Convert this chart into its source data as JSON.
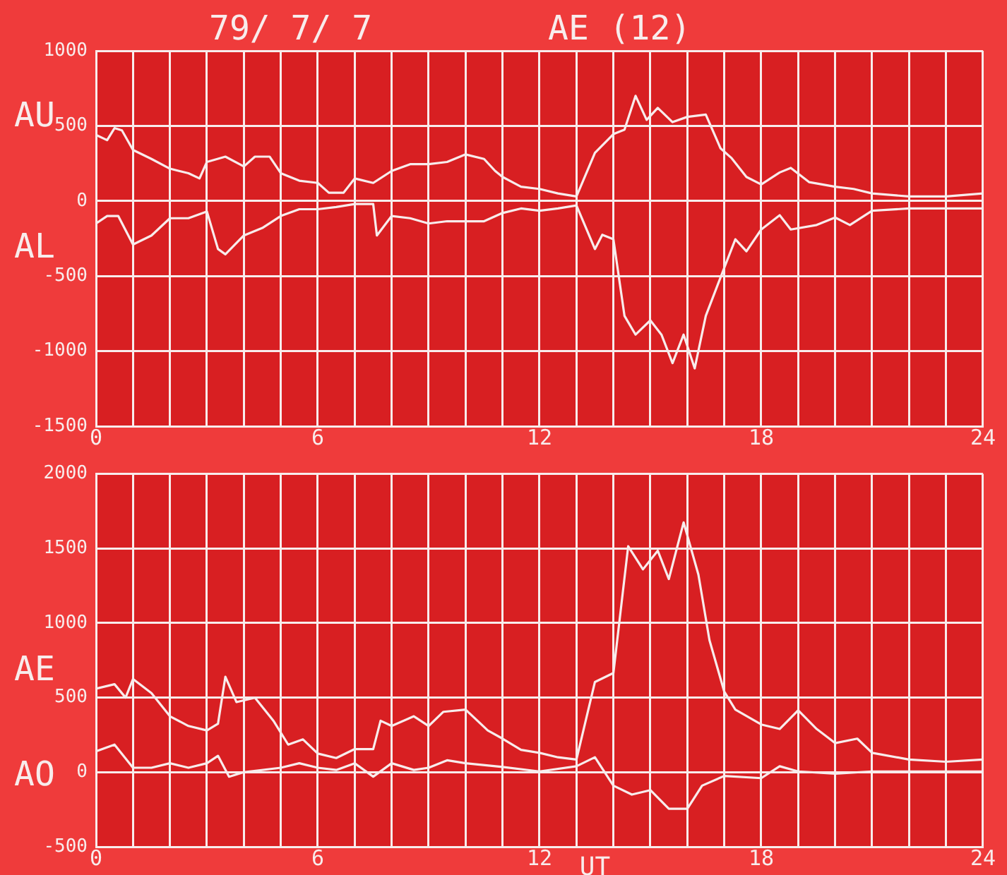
{
  "chart_data": [
    {
      "type": "line",
      "title": "79/ 7/ 7",
      "subtitle": "AE (12)",
      "xlim": [
        0,
        24
      ],
      "ylim": [
        -1500,
        1000
      ],
      "xticks": [
        0,
        {
          "value": 1,
          "label": null
        },
        {
          "value": 2,
          "label": null
        },
        {
          "value": 3,
          "label": null
        },
        {
          "value": 4,
          "label": null
        },
        {
          "value": 5,
          "label": null
        },
        6,
        {
          "value": 7,
          "label": null
        },
        {
          "value": 8,
          "label": null
        },
        {
          "value": 9,
          "label": null
        },
        {
          "value": 10,
          "label": null
        },
        {
          "value": 11,
          "label": null
        },
        12,
        {
          "value": 13,
          "label": null
        },
        {
          "value": 14,
          "label": null
        },
        {
          "value": 15,
          "label": null
        },
        {
          "value": 16,
          "label": null
        },
        {
          "value": 17,
          "label": null
        },
        18,
        {
          "value": 19,
          "label": null
        },
        {
          "value": 20,
          "label": null
        },
        {
          "value": 21,
          "label": null
        },
        {
          "value": 22,
          "label": null
        },
        {
          "value": 23,
          "label": null
        },
        24
      ],
      "yticks": [
        -1500,
        -1000,
        -500,
        0,
        500,
        1000
      ],
      "grid": true,
      "legend": false,
      "marker": "none",
      "line_style": "solid",
      "series": [
        {
          "name": "AU",
          "color": "#f8ecec",
          "x": [
            0,
            0.3,
            0.5,
            0.7,
            1,
            1.5,
            2,
            2.5,
            2.8,
            3,
            3.5,
            4,
            4.3,
            4.7,
            5,
            5.5,
            6,
            6.3,
            6.7,
            7,
            7.5,
            8,
            8.5,
            9,
            9.5,
            10,
            10.5,
            10.8,
            11,
            11.5,
            12,
            12.5,
            13,
            13.5,
            14,
            14.3,
            14.6,
            14.9,
            15.2,
            15.6,
            16,
            16.5,
            16.9,
            17.2,
            17.6,
            18,
            18.5,
            18.8,
            19.3,
            20,
            20.5,
            21,
            22,
            23,
            24
          ],
          "values": [
            440,
            405,
            485,
            470,
            340,
            280,
            215,
            185,
            150,
            260,
            295,
            230,
            295,
            295,
            185,
            135,
            120,
            55,
            55,
            150,
            120,
            200,
            245,
            245,
            260,
            310,
            280,
            200,
            160,
            95,
            80,
            50,
            30,
            320,
            445,
            475,
            700,
            540,
            620,
            525,
            560,
            575,
            350,
            285,
            160,
            110,
            190,
            220,
            125,
            95,
            80,
            50,
            30,
            30,
            50
          ]
        },
        {
          "name": "AL",
          "color": "#f8ecec",
          "x": [
            0,
            0.3,
            0.6,
            0.8,
            1,
            1.5,
            2,
            2.5,
            3,
            3.3,
            3.5,
            4,
            4.5,
            5,
            5.5,
            6,
            6.5,
            7,
            7.5,
            7.6,
            8,
            8.5,
            9,
            9.5,
            10,
            10.5,
            11,
            11.5,
            12,
            12.5,
            13,
            13.5,
            13.7,
            14,
            14.3,
            14.6,
            15,
            15.3,
            15.6,
            15.9,
            16.2,
            16.5,
            17,
            17.3,
            17.6,
            18,
            18.5,
            18.8,
            19.5,
            20,
            20.4,
            21,
            22,
            23,
            24
          ],
          "values": [
            -150,
            -100,
            -100,
            -195,
            -290,
            -230,
            -115,
            -115,
            -70,
            -320,
            -355,
            -230,
            -180,
            -100,
            -55,
            -55,
            -40,
            -20,
            -20,
            -230,
            -100,
            -115,
            -150,
            -135,
            -135,
            -135,
            -80,
            -50,
            -65,
            -50,
            -30,
            -320,
            -225,
            -255,
            -765,
            -890,
            -795,
            -890,
            -1080,
            -890,
            -1115,
            -765,
            -445,
            -255,
            -335,
            -190,
            -95,
            -190,
            -160,
            -110,
            -160,
            -65,
            -50,
            -50,
            -50
          ]
        }
      ]
    },
    {
      "type": "line",
      "xlabel": "UT",
      "xlim": [
        0,
        24
      ],
      "ylim": [
        -500,
        2000
      ],
      "xticks": [
        0,
        {
          "value": 1,
          "label": null
        },
        {
          "value": 2,
          "label": null
        },
        {
          "value": 3,
          "label": null
        },
        {
          "value": 4,
          "label": null
        },
        {
          "value": 5,
          "label": null
        },
        6,
        {
          "value": 7,
          "label": null
        },
        {
          "value": 8,
          "label": null
        },
        {
          "value": 9,
          "label": null
        },
        {
          "value": 10,
          "label": null
        },
        {
          "value": 11,
          "label": null
        },
        12,
        {
          "value": 13,
          "label": null
        },
        {
          "value": 14,
          "label": null
        },
        {
          "value": 15,
          "label": null
        },
        {
          "value": 16,
          "label": null
        },
        {
          "value": 17,
          "label": null
        },
        18,
        {
          "value": 19,
          "label": null
        },
        {
          "value": 20,
          "label": null
        },
        {
          "value": 21,
          "label": null
        },
        {
          "value": 22,
          "label": null
        },
        {
          "value": 23,
          "label": null
        },
        24
      ],
      "yticks": [
        -500,
        0,
        500,
        1000,
        1500,
        2000
      ],
      "grid": true,
      "legend": false,
      "marker": "none",
      "line_style": "solid",
      "series": [
        {
          "name": "AE",
          "color": "#f8ecec",
          "x": [
            0,
            0.5,
            0.8,
            1,
            1.5,
            2,
            2.5,
            3,
            3.3,
            3.5,
            3.8,
            4.3,
            4.8,
            5.2,
            5.6,
            6,
            6.5,
            7,
            7.5,
            7.7,
            8,
            8.6,
            9,
            9.4,
            10,
            10.6,
            11,
            11.5,
            12,
            12.5,
            13,
            13.5,
            14,
            14.4,
            14.8,
            15.2,
            15.5,
            15.9,
            16.3,
            16.6,
            17,
            17.3,
            18,
            18.5,
            19,
            19.5,
            20,
            20.6,
            21,
            22,
            23,
            24
          ],
          "values": [
            560,
            590,
            500,
            625,
            530,
            375,
            310,
            280,
            325,
            640,
            470,
            500,
            345,
            185,
            220,
            125,
            95,
            155,
            155,
            345,
            310,
            375,
            310,
            405,
            420,
            280,
            225,
            150,
            130,
            100,
            85,
            605,
            665,
            1515,
            1360,
            1485,
            1295,
            1675,
            1325,
            885,
            540,
            420,
            320,
            290,
            415,
            290,
            195,
            225,
            130,
            85,
            70,
            85
          ]
        },
        {
          "name": "AO",
          "color": "#f8ecec",
          "x": [
            0,
            0.5,
            1,
            1.5,
            2,
            2.5,
            3,
            3.3,
            3.6,
            4,
            5,
            5.5,
            6,
            6.5,
            7,
            7.5,
            8,
            8.6,
            9,
            9.5,
            10,
            11,
            12,
            13,
            13.5,
            14,
            14.5,
            15,
            15.5,
            16,
            16.4,
            17,
            18,
            18.5,
            19,
            20,
            21,
            22,
            24
          ],
          "values": [
            140,
            185,
            30,
            30,
            60,
            30,
            60,
            110,
            -30,
            0,
            30,
            60,
            30,
            15,
            60,
            -30,
            60,
            15,
            30,
            80,
            60,
            35,
            5,
            40,
            100,
            -90,
            -150,
            -120,
            -245,
            -245,
            -90,
            -25,
            -40,
            40,
            5,
            -10,
            5,
            5,
            5
          ]
        }
      ]
    }
  ]
}
